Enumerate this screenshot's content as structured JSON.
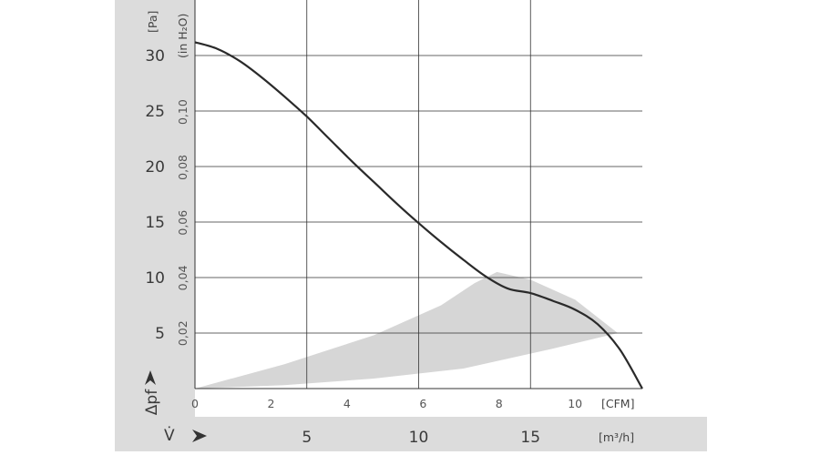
{
  "chart_data": {
    "type": "line",
    "colors": {
      "curve": "#2a2a2a",
      "operating_band": "#d6d6d6",
      "side_panel": "#dcdcdc",
      "grid": "#333333"
    },
    "x_axis_m3h": {
      "label": "V̇",
      "unit": "[m³/h]",
      "range": [
        0,
        20
      ],
      "ticks": [
        5,
        10,
        15
      ]
    },
    "x_axis_cfm": {
      "unit": "[CFM]",
      "range": [
        0,
        11.77
      ],
      "ticks": [
        0,
        2,
        4,
        6,
        8,
        10
      ]
    },
    "y_axis_pa": {
      "label": "Δpf",
      "unit": "[Pa]",
      "range": [
        0,
        35
      ],
      "ticks": [
        5,
        10,
        15,
        20,
        25,
        30
      ]
    },
    "y_axis_inh2o": {
      "unit": "(in H₂O)",
      "ticks": [
        "0,02",
        "0,04",
        "0,06",
        "0,08",
        "0,10"
      ],
      "tick_values": [
        0.02,
        0.04,
        0.06,
        0.08,
        0.1
      ]
    },
    "grid": true,
    "series": [
      {
        "x": [
          0,
          1,
          2,
          3,
          4,
          5,
          6,
          7,
          8,
          9,
          10,
          11,
          12,
          13,
          14,
          15,
          16,
          17,
          18,
          19,
          20
        ],
        "y": [
          31.2,
          30.6,
          29.5,
          28.0,
          26.3,
          24.5,
          22.5,
          20.5,
          18.6,
          16.7,
          14.9,
          13.2,
          11.6,
          10.1,
          9.0,
          8.6,
          7.9,
          7.1,
          5.8,
          3.5,
          0
        ]
      }
    ],
    "operating_band": {
      "upper": {
        "x": [
          0,
          4,
          8,
          11,
          12.5,
          13.5,
          15,
          17,
          18.9
        ],
        "y": [
          0,
          2.2,
          4.8,
          7.5,
          9.5,
          10.5,
          9.8,
          8.0,
          5.0
        ]
      },
      "lower": {
        "x": [
          18.9,
          16,
          12,
          8,
          4,
          0
        ],
        "y": [
          5.0,
          3.6,
          1.8,
          0.9,
          0.3,
          0
        ]
      }
    }
  }
}
